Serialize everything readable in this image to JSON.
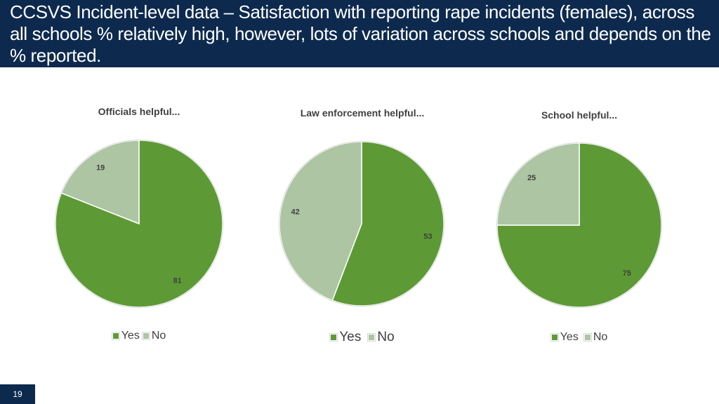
{
  "header": {
    "title": "CCSVS Incident-level data – Satisfaction with reporting rape incidents (females), across all schools % relatively high, however, lots of variation across schools and depends on the % reported."
  },
  "colors": {
    "header_bg": "#0d2a4e",
    "yes": "#5d9a35",
    "no": "#adc5a3",
    "text": "#404040"
  },
  "chart_data": [
    {
      "type": "pie",
      "title": "Officials helpful...",
      "categories": [
        "Yes",
        "No"
      ],
      "values": [
        81,
        19
      ],
      "legend": "bottom"
    },
    {
      "type": "pie",
      "title": "Law enforcement helpful...",
      "categories": [
        "Yes",
        "No"
      ],
      "values": [
        53,
        42
      ],
      "legend": "bottom"
    },
    {
      "type": "pie",
      "title": "School helpful...",
      "categories": [
        "Yes",
        "No"
      ],
      "values": [
        75,
        25
      ],
      "legend": "bottom"
    }
  ],
  "footer": {
    "page_number": "19"
  }
}
